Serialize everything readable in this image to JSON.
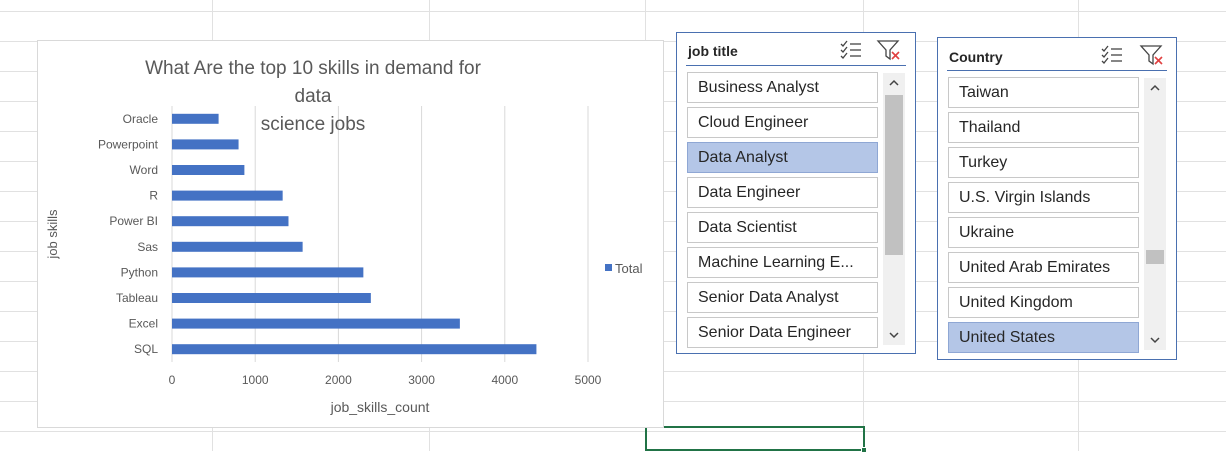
{
  "chart_data": {
    "type": "bar",
    "orientation": "horizontal",
    "title": "What Are the top 10 skills in demand for data science jobs",
    "title_lines": [
      "What Are the top 10 skills in demand for data",
      "science jobs"
    ],
    "categories": [
      "SQL",
      "Excel",
      "Tableau",
      "Python",
      "Sas",
      "Power BI",
      "R",
      "Word",
      "Powerpoint",
      "Oracle"
    ],
    "series": [
      {
        "name": "Total",
        "values": [
          4380,
          3460,
          2390,
          2300,
          1570,
          1400,
          1330,
          870,
          800,
          560
        ],
        "color": "#4472c4"
      }
    ],
    "xlabel": "job_skills_count",
    "ylabel": "job skills",
    "xlim": [
      0,
      5000
    ],
    "xticks": [
      0,
      1000,
      2000,
      3000,
      4000,
      5000
    ],
    "grid": true,
    "legend_position": "right"
  },
  "slicer_job_title": {
    "title": "job title",
    "items": [
      {
        "label": "Business Analyst",
        "selected": false
      },
      {
        "label": "Cloud Engineer",
        "selected": false
      },
      {
        "label": "Data Analyst",
        "selected": true
      },
      {
        "label": "Data Engineer",
        "selected": false
      },
      {
        "label": "Data Scientist",
        "selected": false
      },
      {
        "label": "Machine Learning E...",
        "selected": false
      },
      {
        "label": "Senior Data Analyst",
        "selected": false
      },
      {
        "label": "Senior Data Engineer",
        "selected": false
      }
    ]
  },
  "slicer_country": {
    "title": "Country",
    "items": [
      {
        "label": "Taiwan",
        "selected": false
      },
      {
        "label": "Thailand",
        "selected": false
      },
      {
        "label": "Turkey",
        "selected": false
      },
      {
        "label": "U.S. Virgin Islands",
        "selected": false
      },
      {
        "label": "Ukraine",
        "selected": false
      },
      {
        "label": "United Arab Emirates",
        "selected": false
      },
      {
        "label": "United Kingdom",
        "selected": false
      },
      {
        "label": "United States",
        "selected": true
      }
    ]
  },
  "colors": {
    "bar": "#4472c4",
    "slicer_border": "#4a70b0",
    "slicer_selected": "#b4c6e7",
    "cell_selection": "#217346"
  },
  "icons": [
    "multi-select-icon",
    "clear-filter-icon",
    "scroll-up-icon",
    "scroll-down-icon"
  ]
}
